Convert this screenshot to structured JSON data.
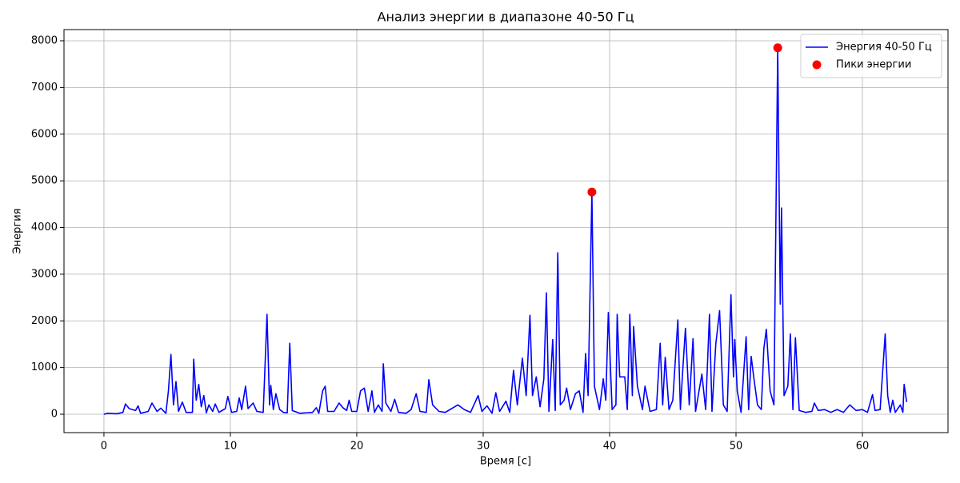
{
  "chart_data": {
    "type": "line",
    "title": "Анализ энергии в диапазоне 40-50 Гц",
    "x_label": "Время [с]",
    "y_label": "Энергия",
    "xlim": [
      -3.16,
      66.77
    ],
    "ylim": [
      -394,
      8240
    ],
    "xticks": [
      0,
      10,
      20,
      30,
      40,
      50,
      60
    ],
    "yticks": [
      0,
      1000,
      2000,
      3000,
      4000,
      5000,
      6000,
      7000,
      8000
    ],
    "grid": true,
    "legend": "upper right",
    "series": [
      {
        "name": "Энергия 40-50 Гц",
        "type": "line",
        "color": "#0000ff",
        "x": [
          0,
          0.3,
          1,
          1.5,
          1.7,
          2,
          2.5,
          2.7,
          2.9,
          3.5,
          3.8,
          4.2,
          4.5,
          4.9,
          5.1,
          5.3,
          5.5,
          5.7,
          5.9,
          6.2,
          6.5,
          7.0,
          7.1,
          7.3,
          7.5,
          7.7,
          7.9,
          8.1,
          8.3,
          8.6,
          8.8,
          9.1,
          9.6,
          9.8,
          10.1,
          10.5,
          10.7,
          10.9,
          11.2,
          11.4,
          11.8,
          12.1,
          12.6,
          12.9,
          13.1,
          13.2,
          13.4,
          13.6,
          13.9,
          14.2,
          14.5,
          14.7,
          14.9,
          15.5,
          16.5,
          16.8,
          17.0,
          17.3,
          17.5,
          17.7,
          18.2,
          18.6,
          18.9,
          19.2,
          19.4,
          19.6,
          20.0,
          20.3,
          20.6,
          20.9,
          21.2,
          21.4,
          21.7,
          22.0,
          22.1,
          22.3,
          22.7,
          23.0,
          23.3,
          23.9,
          24.3,
          24.7,
          25.0,
          25.5,
          25.7,
          26.0,
          26.5,
          27.0,
          27.5,
          28.0,
          28.5,
          29.0,
          29.6,
          29.9,
          30.3,
          30.7,
          31.0,
          31.3,
          31.8,
          32.1,
          32.4,
          32.7,
          33.1,
          33.4,
          33.7,
          33.9,
          34.2,
          34.5,
          34.8,
          35.0,
          35.2,
          35.5,
          35.7,
          35.9,
          36.1,
          36.4,
          36.6,
          36.9,
          37.3,
          37.6,
          37.9,
          38.1,
          38.3,
          38.6,
          38.8,
          39.2,
          39.5,
          39.7,
          39.9,
          40.2,
          40.5,
          40.6,
          40.8,
          41.2,
          41.4,
          41.6,
          41.8,
          41.9,
          42.2,
          42.6,
          42.8,
          43.2,
          43.7,
          44.0,
          44.2,
          44.4,
          44.7,
          45.0,
          45.4,
          45.6,
          45.8,
          46.0,
          46.3,
          46.6,
          46.8,
          47.3,
          47.6,
          47.9,
          48.1,
          48.4,
          48.7,
          49.0,
          49.3,
          49.6,
          49.8,
          49.9,
          50.1,
          50.4,
          50.8,
          51.0,
          51.2,
          51.4,
          51.7,
          52.0,
          52.2,
          52.4,
          52.7,
          53.0,
          53.3,
          53.5,
          53.6,
          53.8,
          54.1,
          54.3,
          54.5,
          54.7,
          55.0,
          55.5,
          56.0,
          56.2,
          56.5,
          57.0,
          57.5,
          58.0,
          58.5,
          59.0,
          59.5,
          60.0,
          60.4,
          60.8,
          61.0,
          61.4,
          61.8,
          62.0,
          62.2,
          62.4,
          62.6,
          63.0,
          63.2,
          63.3,
          63.5
        ],
        "values": [
          0,
          20,
          10,
          40,
          220,
          120,
          80,
          180,
          20,
          60,
          240,
          60,
          130,
          20,
          500,
          1280,
          200,
          700,
          60,
          260,
          40,
          40,
          1180,
          300,
          640,
          160,
          400,
          30,
          200,
          60,
          220,
          40,
          120,
          380,
          40,
          60,
          350,
          100,
          600,
          120,
          240,
          60,
          40,
          2140,
          200,
          620,
          100,
          440,
          100,
          40,
          30,
          1520,
          80,
          20,
          40,
          140,
          20,
          500,
          600,
          60,
          60,
          240,
          140,
          80,
          300,
          60,
          60,
          500,
          560,
          60,
          500,
          40,
          200,
          60,
          1080,
          240,
          60,
          320,
          40,
          20,
          100,
          440,
          60,
          40,
          740,
          200,
          60,
          40,
          120,
          200,
          100,
          40,
          400,
          60,
          180,
          20,
          460,
          60,
          280,
          40,
          940,
          200,
          1200,
          400,
          2120,
          400,
          800,
          160,
          760,
          2600,
          60,
          1600,
          80,
          3460,
          200,
          300,
          560,
          100,
          440,
          500,
          40,
          1300,
          400,
          4760,
          600,
          100,
          760,
          300,
          2180,
          100,
          200,
          2140,
          800,
          800,
          100,
          2140,
          400,
          1880,
          600,
          100,
          600,
          60,
          100,
          1520,
          200,
          1220,
          100,
          300,
          2020,
          100,
          1000,
          1840,
          200,
          1620,
          60,
          860,
          100,
          2140,
          60,
          1500,
          2220,
          200,
          60,
          2560,
          800,
          1600,
          500,
          40,
          1660,
          100,
          1240,
          800,
          200,
          100,
          1400,
          1820,
          500,
          200,
          7850,
          2360,
          4420,
          400,
          600,
          1720,
          100,
          1640,
          80,
          40,
          60,
          240,
          80,
          100,
          40,
          100,
          40,
          200,
          80,
          100,
          40,
          420,
          80,
          100,
          1720,
          400,
          40,
          300,
          40,
          200,
          40,
          640,
          260
        ]
      },
      {
        "name": "Пики энергии",
        "type": "scatter",
        "color": "#ff0000",
        "x": [
          38.6,
          53.3
        ],
        "values": [
          4760,
          7850
        ]
      }
    ]
  }
}
